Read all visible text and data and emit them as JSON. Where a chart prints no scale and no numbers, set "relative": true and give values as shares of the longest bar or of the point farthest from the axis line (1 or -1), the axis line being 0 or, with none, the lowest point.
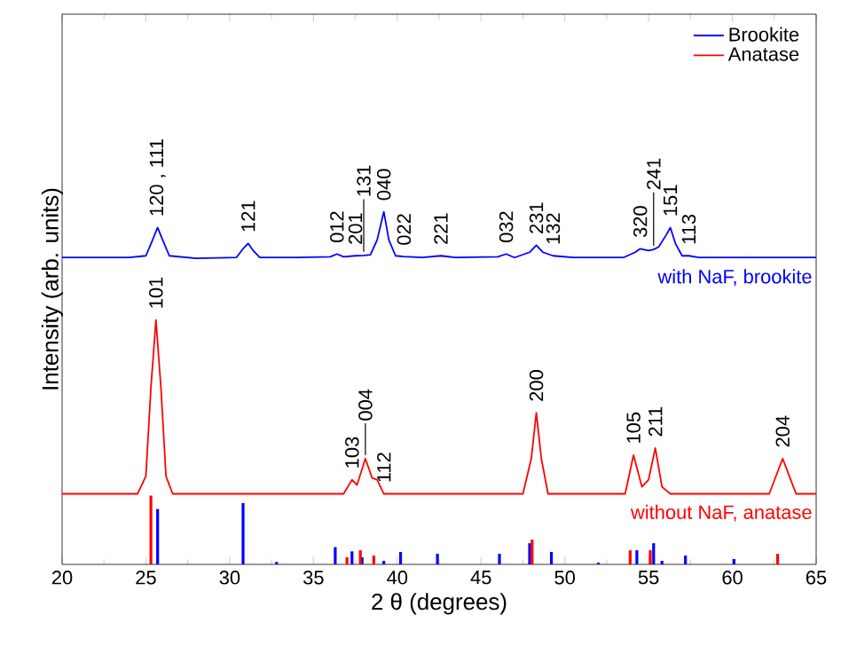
{
  "chart_data": {
    "type": "line",
    "relative": true,
    "xlabel": "2 θ (degrees)",
    "ylabel": "Intensity (arb. units)",
    "xlim": [
      20,
      65
    ],
    "xticks": [
      20,
      25,
      30,
      35,
      40,
      45,
      50,
      55,
      60,
      65
    ],
    "legend": "top right",
    "grid": false,
    "series": [
      {
        "color": "#0000ff",
        "x": [
          20,
          22,
          24,
          25.0,
          25.4,
          25.7,
          26.0,
          26.4,
          28,
          30.4,
          30.8,
          31.1,
          31.4,
          31.8,
          34,
          36.0,
          36.4,
          36.8,
          37.5,
          38.0,
          38.4,
          38.8,
          39.2,
          39.5,
          39.9,
          40.4,
          41.5,
          42.6,
          43.5,
          46.0,
          46.5,
          47.0,
          47.9,
          48.3,
          48.7,
          49.3,
          50.5,
          53.5,
          54.2,
          54.5,
          55.0,
          55.3,
          55.6,
          56.0,
          56.3,
          56.6,
          57.0,
          57.4,
          58,
          62,
          65
        ],
        "values": [
          0.87,
          0.87,
          0.87,
          0.875,
          0.92,
          0.955,
          0.92,
          0.875,
          0.868,
          0.87,
          0.895,
          0.91,
          0.89,
          0.87,
          0.87,
          0.872,
          0.88,
          0.872,
          0.875,
          0.876,
          0.878,
          0.92,
          1.0,
          0.92,
          0.875,
          0.873,
          0.87,
          0.875,
          0.87,
          0.872,
          0.88,
          0.87,
          0.885,
          0.905,
          0.885,
          0.875,
          0.87,
          0.87,
          0.885,
          0.895,
          0.89,
          0.893,
          0.9,
          0.93,
          0.955,
          0.91,
          0.875,
          0.875,
          0.87,
          0.87,
          0.87
        ]
      },
      {
        "color": "#ff0000",
        "x": [
          20,
          24.5,
          25.0,
          25.3,
          25.6,
          25.9,
          26.2,
          26.6,
          30,
          36.8,
          37.3,
          37.6,
          38.1,
          38.5,
          38.8,
          39.2,
          47.5,
          48.0,
          48.3,
          48.6,
          49.0,
          53.6,
          54.1,
          54.6,
          55.0,
          55.4,
          55.8,
          56.3,
          62.2,
          62.6,
          63.0,
          63.4,
          63.8,
          65
        ],
        "values": [
          0.2,
          0.2,
          0.25,
          0.5,
          0.693,
          0.5,
          0.25,
          0.2,
          0.2,
          0.2,
          0.24,
          0.225,
          0.3,
          0.245,
          0.24,
          0.2,
          0.2,
          0.3,
          0.43,
          0.3,
          0.2,
          0.2,
          0.31,
          0.22,
          0.24,
          0.33,
          0.22,
          0.2,
          0.2,
          0.25,
          0.3,
          0.25,
          0.2,
          0.2
        ]
      },
      {
        "type": "bar",
        "name": "Brookite",
        "color": "#0000ff",
        "x": [
          25.7,
          30.8,
          32.8,
          36.3,
          37.3,
          37.9,
          39.2,
          40.2,
          42.4,
          46.1,
          47.9,
          49.2,
          52.0,
          54.3,
          55.3,
          55.8,
          57.2,
          60.1
        ],
        "values": [
          0.157,
          0.174,
          0.007,
          0.049,
          0.037,
          0.02,
          0.01,
          0.035,
          0.03,
          0.03,
          0.06,
          0.035,
          0.005,
          0.04,
          0.06,
          0.01,
          0.025,
          0.015
        ]
      },
      {
        "type": "bar",
        "name": "Anatase",
        "color": "#ff0000",
        "x": [
          25.3,
          37.0,
          37.8,
          38.6,
          48.05,
          53.9,
          55.1,
          62.7
        ],
        "values": [
          0.195,
          0.02,
          0.04,
          0.025,
          0.07,
          0.04,
          0.04,
          0.03
        ]
      }
    ],
    "annotations": [
      {
        "text": "120 , 111",
        "x": 25.7,
        "y": 0.955
      },
      {
        "text": "121",
        "x": 31.1,
        "y": 0.91
      },
      {
        "text": "012",
        "x": 36.4,
        "y": 0.88
      },
      {
        "text": "201",
        "x": 37.5,
        "y": 0.875
      },
      {
        "text": "131",
        "x": 38.0,
        "y": 0.876
      },
      {
        "text": "040",
        "x": 39.2,
        "y": 1.0
      },
      {
        "text": "022",
        "x": 40.4,
        "y": 0.873
      },
      {
        "text": "221",
        "x": 42.6,
        "y": 0.875
      },
      {
        "text": "032",
        "x": 46.5,
        "y": 0.88
      },
      {
        "text": "231",
        "x": 48.3,
        "y": 0.905
      },
      {
        "text": "132",
        "x": 49.3,
        "y": 0.875
      },
      {
        "text": "320",
        "x": 54.5,
        "y": 0.895
      },
      {
        "text": "241",
        "x": 55.3,
        "y": 0.893
      },
      {
        "text": "151",
        "x": 56.3,
        "y": 0.955
      },
      {
        "text": "113",
        "x": 57.4,
        "y": 0.875
      },
      {
        "text": "101",
        "x": 25.6,
        "y": 0.693
      },
      {
        "text": "103",
        "x": 37.3,
        "y": 0.24
      },
      {
        "text": "004",
        "x": 38.1,
        "y": 0.3
      },
      {
        "text": "112",
        "x": 39.2,
        "y": 0.2
      },
      {
        "text": "200",
        "x": 48.3,
        "y": 0.43
      },
      {
        "text": "105",
        "x": 54.1,
        "y": 0.31
      },
      {
        "text": "211",
        "x": 55.4,
        "y": 0.33
      },
      {
        "text": "204",
        "x": 63.0,
        "y": 0.3
      },
      "with NaF, brookite",
      "without NaF, anatase"
    ]
  }
}
